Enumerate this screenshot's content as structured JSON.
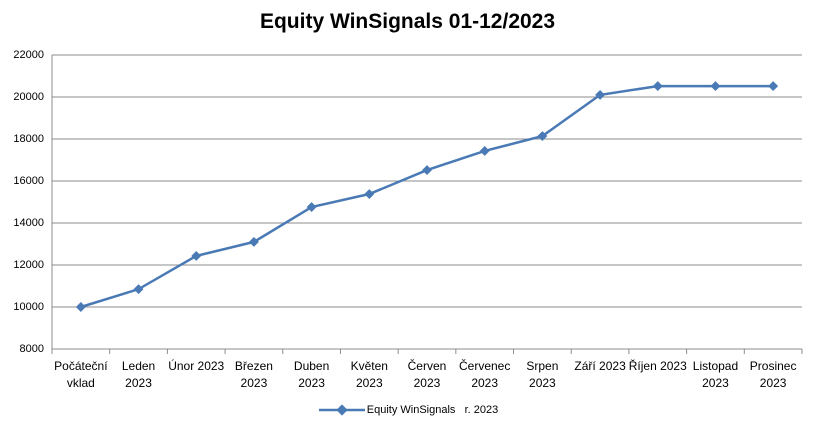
{
  "chart_data": {
    "type": "line",
    "title": "Equity WinSignals 01-12/2023",
    "categories": [
      "Počáteční vklad",
      "Leden 2023",
      "Únor 2023",
      "Březen 2023",
      "Duben 2023",
      "Květen 2023",
      "Červen 2023",
      "Červenec 2023",
      "Srpen 2023",
      "Září 2023",
      "Říjen 2023",
      "Listopad 2023",
      "Prosinec 2023"
    ],
    "series": [
      {
        "name": "Equity WinSignals   r. 2023",
        "color": "#4a7ab5",
        "values": [
          10000,
          10850,
          12430,
          13100,
          14760,
          15380,
          16520,
          17430,
          18140,
          20100,
          20520,
          20520,
          20520
        ]
      }
    ],
    "ylim": [
      8000,
      22000
    ],
    "yticks": [
      8000,
      10000,
      12000,
      14000,
      16000,
      18000,
      20000,
      22000
    ],
    "grid": true,
    "legend": "bottom"
  }
}
